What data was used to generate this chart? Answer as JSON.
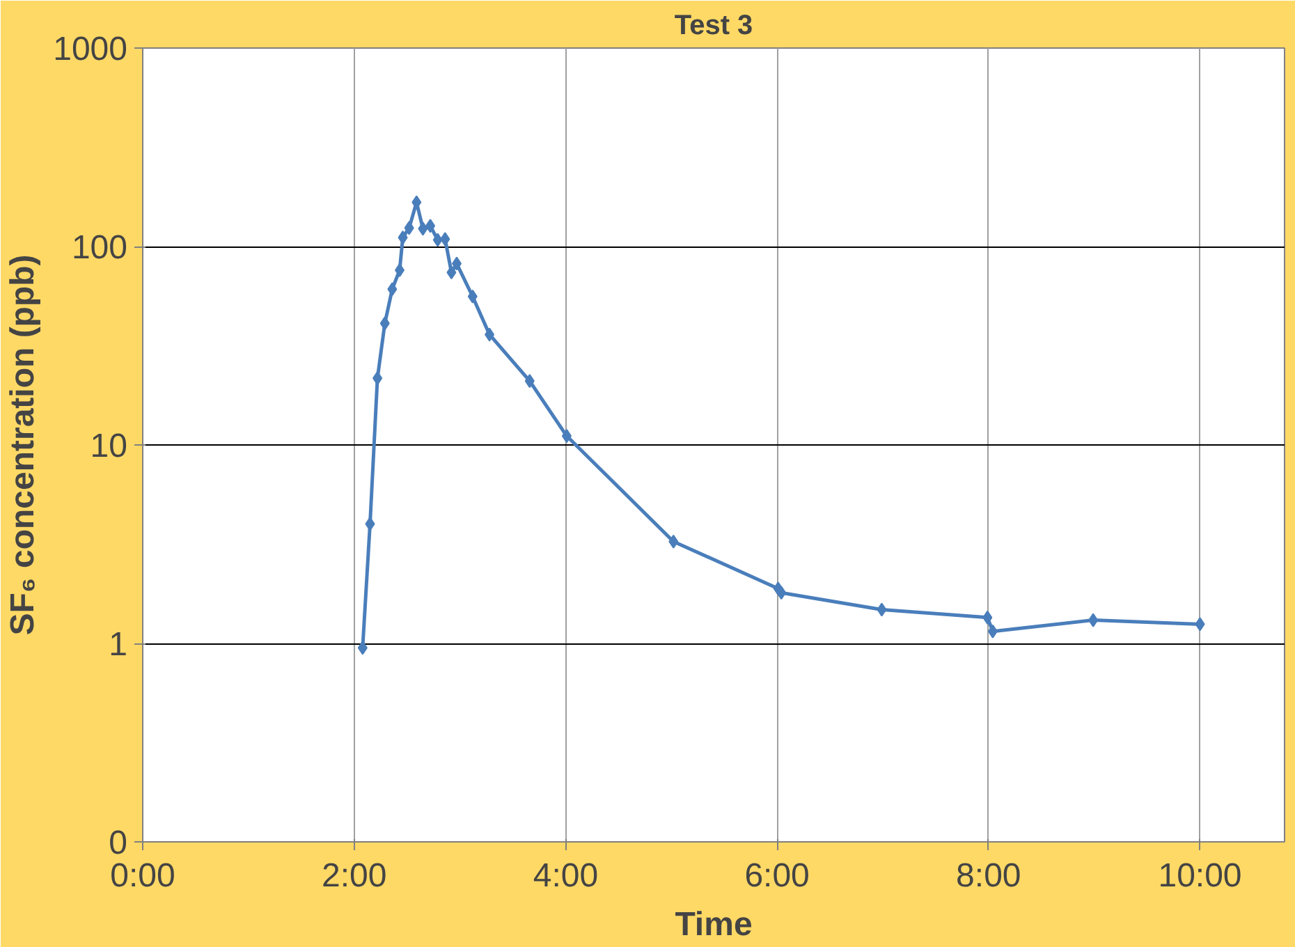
{
  "chart_data": {
    "type": "line",
    "title": "Test 3",
    "xlabel": "Time",
    "ylabel": "SF₆ concentration (ppb)",
    "x": [
      2.08,
      2.15,
      2.22,
      2.29,
      2.36,
      2.43,
      2.46,
      2.52,
      2.59,
      2.65,
      2.72,
      2.79,
      2.86,
      2.92,
      2.97,
      3.12,
      3.28,
      3.66,
      4.01,
      5.02,
      6.01,
      6.04,
      6.99,
      7.99,
      8.04,
      8.99,
      10.0
    ],
    "values": [
      0.95,
      4.0,
      21.7,
      41,
      61,
      76,
      111,
      124,
      167,
      123,
      127,
      108,
      109,
      74,
      82,
      56,
      36,
      21,
      11.1,
      3.26,
      1.89,
      1.8,
      1.48,
      1.35,
      1.15,
      1.31,
      1.25
    ],
    "color": "#4a7ebb",
    "marker": "diamond",
    "line_style": "solid",
    "log": "y",
    "grid": true,
    "xlim": [
      0,
      10.8
    ],
    "ylim": [
      0.1,
      1000
    ],
    "xticks": [
      {
        "value": 0,
        "label": "0:00"
      },
      {
        "value": 2,
        "label": "2:00"
      },
      {
        "value": 4,
        "label": "4:00"
      },
      {
        "value": 6,
        "label": "6:00"
      },
      {
        "value": 8,
        "label": "8:00"
      },
      {
        "value": 10,
        "label": "10:00"
      }
    ],
    "yticks": [
      {
        "value": 0.1,
        "label": "0"
      },
      1,
      10,
      100,
      1000
    ]
  }
}
